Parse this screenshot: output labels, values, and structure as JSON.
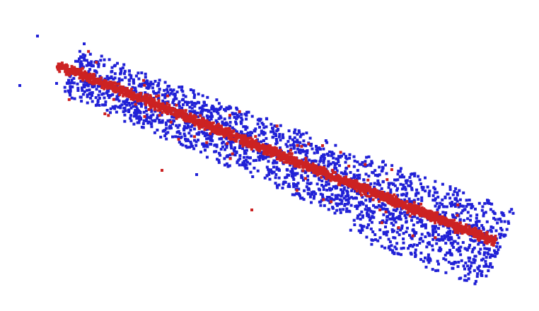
{
  "scene": {
    "background": "#ffffff",
    "point_shape": "square",
    "clusters": [
      {
        "name": "outer-band-points",
        "color": "#2121d6",
        "count": 2100
      },
      {
        "name": "center-line-points",
        "color": "#cc2222",
        "count": 2300
      },
      {
        "name": "scattered-red-points",
        "color": "#cc2222",
        "count": 60
      }
    ]
  }
}
